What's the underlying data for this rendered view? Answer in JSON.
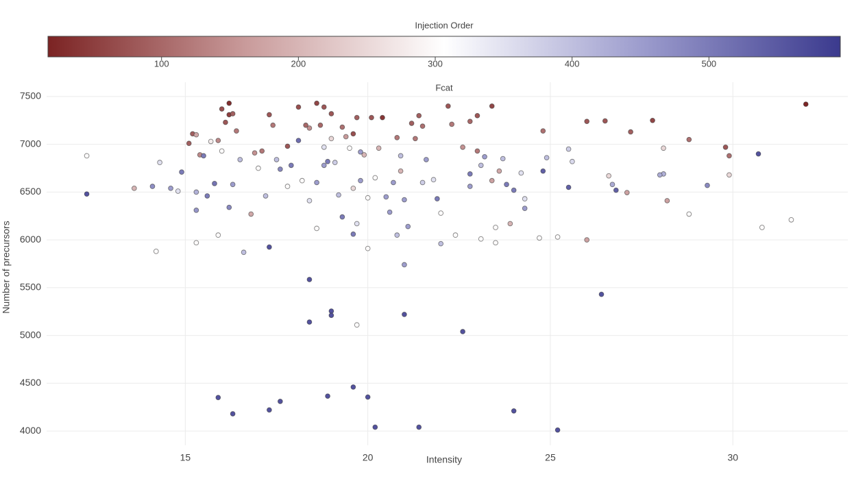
{
  "chart_data": {
    "type": "scatter",
    "title": "Fcat",
    "x_label": "Intensity",
    "y_label": "Number of precursors",
    "colorbar_title": "Injection Order",
    "colorscale": [
      "#7b2323",
      "#c99b9b",
      "#ffffff",
      "#9c9ccd",
      "#3b3a8e"
    ],
    "clim": [
      17,
      596
    ],
    "cticks": [
      100,
      200,
      300,
      400,
      500
    ],
    "xlim": [
      11.2,
      33.15
    ],
    "xticks": [
      15,
      20,
      25,
      30
    ],
    "ylim": [
      3850,
      7650
    ],
    "yticks": [
      4000,
      4500,
      5000,
      5500,
      6000,
      6500,
      7000,
      7500
    ],
    "grid": true,
    "x": [
      12.3,
      15.9,
      16.3,
      17.3,
      17.6,
      18.9,
      19.6,
      20.0,
      20.2,
      21.4,
      24.0,
      25.2,
      18.4,
      18.4,
      19.0,
      19.0,
      21.0,
      22.6,
      26.4,
      17.3,
      12.3,
      14.2,
      19.7,
      21.0,
      32.0,
      26.0,
      26.5,
      27.8,
      27.2,
      28.8,
      29.8,
      29.9,
      30.7,
      29.3,
      28.1,
      26.6,
      26.7,
      26.8,
      27.1,
      28.2,
      28.8,
      29.9,
      30.8,
      31.6,
      26.0,
      25.5,
      25.6,
      25.5,
      24.8,
      24.8,
      24.9,
      24.7,
      25.2,
      24.3,
      24.3,
      28.1,
      28.0,
      13.6,
      14.1,
      14.3,
      14.6,
      14.8,
      14.9,
      15.1,
      15.2,
      15.3,
      15.4,
      15.3,
      15.3,
      15.3,
      15.5,
      15.6,
      15.7,
      15.8,
      15.9,
      16.0,
      16.1,
      16.2,
      16.2,
      16.3,
      16.4,
      16.0,
      16.2,
      15.9,
      16.3,
      16.5,
      16.6,
      16.8,
      16.9,
      17.1,
      17.0,
      17.2,
      17.3,
      17.4,
      17.5,
      17.6,
      17.8,
      17.8,
      17.9,
      18.1,
      18.1,
      18.2,
      18.4,
      18.3,
      18.4,
      18.6,
      18.7,
      18.6,
      18.6,
      18.8,
      18.8,
      18.8,
      18.9,
      19.0,
      19.0,
      19.1,
      19.2,
      19.3,
      19.3,
      19.4,
      19.5,
      19.6,
      19.6,
      19.7,
      19.7,
      19.8,
      19.8,
      19.9,
      20.0,
      20.0,
      20.1,
      20.2,
      20.4,
      20.3,
      20.5,
      20.7,
      20.8,
      20.9,
      20.8,
      20.9,
      21.0,
      21.1,
      21.2,
      21.3,
      21.4,
      21.5,
      21.5,
      21.8,
      21.9,
      22.0,
      22.0,
      22.2,
      22.3,
      22.4,
      22.6,
      22.8,
      22.8,
      23.0,
      23.1,
      23.1,
      23.2,
      23.4,
      23.5,
      23.5,
      23.6,
      23.8,
      23.9,
      24.0,
      23.4,
      23.0,
      22.8,
      23.7,
      24.2,
      19.6,
      20.6,
      21.6
    ],
    "values": [
      6480,
      4350,
      4180,
      4220,
      4310,
      4365,
      4460,
      4355,
      4040,
      4040,
      4210,
      4010,
      5585,
      5140,
      5255,
      5210,
      5220,
      5040,
      5430,
      5925,
      6880,
      5880,
      5110,
      5740,
      7420,
      7240,
      7245,
      7250,
      7130,
      7050,
      6970,
      6880,
      6900,
      6570,
      6690,
      6670,
      6580,
      6520,
      6495,
      6410,
      6270,
      6680,
      6130,
      6210,
      6000,
      6950,
      6820,
      6550,
      6720,
      7140,
      6860,
      6020,
      6030,
      6430,
      6330,
      6960,
      6680,
      6540,
      6560,
      6810,
      6540,
      6510,
      6710,
      7010,
      7110,
      7100,
      6890,
      6500,
      6310,
      5970,
      6880,
      6460,
      7030,
      6590,
      7040,
      7370,
      7230,
      7310,
      7430,
      7320,
      7140,
      6930,
      6340,
      6050,
      6580,
      6840,
      5870,
      6270,
      6910,
      6930,
      6750,
      6460,
      7310,
      7200,
      6840,
      6740,
      6980,
      6560,
      6780,
      7390,
      7040,
      6620,
      6410,
      7200,
      7170,
      7430,
      7200,
      6600,
      6120,
      7390,
      6970,
      6780,
      6820,
      7320,
      7060,
      6810,
      6470,
      6240,
      7180,
      7080,
      6960,
      7110,
      6540,
      7280,
      6170,
      6920,
      6620,
      6890,
      6440,
      5910,
      7280,
      6650,
      7280,
      6960,
      6450,
      6600,
      7070,
      6720,
      6050,
      6880,
      6420,
      6140,
      7220,
      7060,
      7300,
      7190,
      6600,
      6630,
      6430,
      6280,
      5960,
      7400,
      7210,
      6050,
      6970,
      7240,
      6560,
      6930,
      6780,
      6010,
      6870,
      6620,
      6130,
      5970,
      6720,
      6580,
      6170,
      6520,
      7400,
      7300,
      6690,
      6850,
      6700,
      6060,
      6290,
      6840
    ],
    "color_values": [
      560,
      560,
      560,
      560,
      560,
      560,
      560,
      560,
      560,
      560,
      560,
      560,
      560,
      560,
      560,
      560,
      560,
      560,
      560,
      560,
      300,
      300,
      300,
      450,
      20,
      80,
      80,
      60,
      90,
      110,
      80,
      110,
      560,
      480,
      420,
      250,
      430,
      540,
      170,
      170,
      300,
      250,
      300,
      300,
      170,
      380,
      360,
      540,
      540,
      110,
      400,
      300,
      300,
      350,
      450,
      250,
      430,
      200,
      470,
      350,
      450,
      350,
      500,
      90,
      90,
      180,
      140,
      420,
      460,
      300,
      500,
      500,
      280,
      510,
      140,
      70,
      80,
      50,
      30,
      90,
      120,
      300,
      480,
      300,
      450,
      400,
      400,
      180,
      150,
      120,
      300,
      400,
      80,
      120,
      400,
      480,
      80,
      300,
      500,
      70,
      520,
      300,
      350,
      100,
      150,
      60,
      100,
      450,
      300,
      80,
      350,
      450,
      500,
      80,
      250,
      380,
      400,
      500,
      110,
      160,
      300,
      70,
      250,
      90,
      350,
      450,
      450,
      200,
      300,
      300,
      80,
      300,
      40,
      200,
      450,
      450,
      120,
      200,
      400,
      400,
      450,
      450,
      90,
      120,
      90,
      110,
      380,
      350,
      500,
      300,
      400,
      80,
      120,
      300,
      150,
      100,
      450,
      120,
      400,
      300,
      450,
      170,
      300,
      300,
      180,
      500,
      200,
      500,
      60,
      80,
      500,
      400,
      350,
      500,
      450,
      450
    ]
  }
}
